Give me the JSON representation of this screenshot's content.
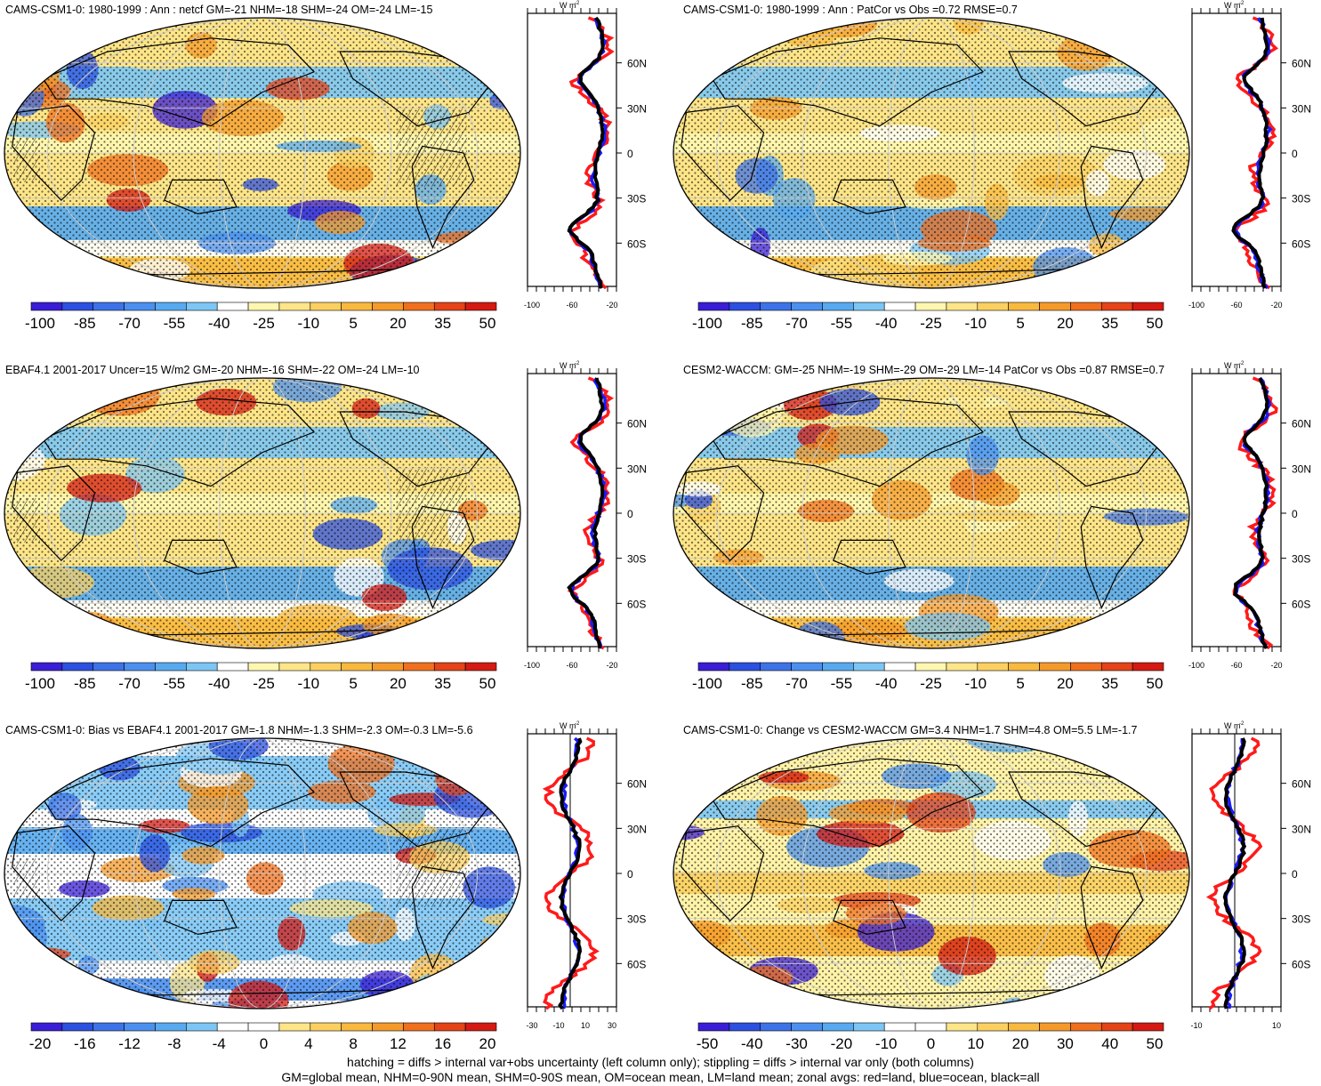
{
  "panels": [
    {
      "title": "CAMS-CSM1-0: 1980-1999 : Ann : netcf GM=-21 NHM=-18 SHM=-24 OM=-24 LM=-15",
      "colorbar": [
        "-100",
        "-85",
        "-70",
        "-55",
        "-40",
        "-25",
        "-10",
        "5",
        "20",
        "35",
        "50"
      ],
      "scheme": "full",
      "zonal_unit": "W m",
      "zonal_lat_labels": [
        "60N",
        "30N",
        "0",
        "30S",
        "60S"
      ],
      "zonal_x_labels": [
        "-100",
        "-60",
        "-20"
      ]
    },
    {
      "title": "CAMS-CSM1-0: 1980-1999 : Ann : PatCor vs Obs =0.72 RMSE=0.7",
      "colorbar": [
        "-100",
        "-85",
        "-70",
        "-55",
        "-40",
        "-25",
        "-10",
        "5",
        "20",
        "35",
        "50"
      ],
      "scheme": "full",
      "zonal_unit": "W m",
      "zonal_lat_labels": [
        "60N",
        "30N",
        "0",
        "30S",
        "60S"
      ],
      "zonal_x_labels": [
        "-100",
        "-60",
        "-20"
      ]
    },
    {
      "title": "EBAF4.1 2001-2017 Uncer=15 W/m2 GM=-20 NHM=-16 SHM=-22 OM=-24 LM=-10",
      "colorbar": [
        "-100",
        "-85",
        "-70",
        "-55",
        "-40",
        "-25",
        "-10",
        "5",
        "20",
        "35",
        "50"
      ],
      "scheme": "full",
      "zonal_unit": "W m",
      "zonal_lat_labels": [
        "60N",
        "30N",
        "0",
        "30S",
        "60S"
      ],
      "zonal_x_labels": [
        "-100",
        "-60",
        "-20"
      ]
    },
    {
      "title": "CESM2-WACCM: GM=-25 NHM=-19 SHM=-29 OM=-29 LM=-14 PatCor vs Obs =0.87 RMSE=0.7",
      "colorbar": [
        "-100",
        "-85",
        "-70",
        "-55",
        "-40",
        "-25",
        "-10",
        "5",
        "20",
        "35",
        "50"
      ],
      "scheme": "full",
      "zonal_unit": "W m",
      "zonal_lat_labels": [
        "60N",
        "30N",
        "0",
        "30S",
        "60S"
      ],
      "zonal_x_labels": [
        "-100",
        "-60",
        "-20"
      ]
    },
    {
      "title": "CAMS-CSM1-0: Bias vs EBAF4.1 2001-2017 GM=-1.8 NHM=-1.3 SHM=-2.3 OM=-0.3 LM=-5.6",
      "colorbar": [
        "-20",
        "-16",
        "-12",
        "-8",
        "-4",
        "0",
        "4",
        "8",
        "12",
        "16",
        "20"
      ],
      "scheme": "diff",
      "zonal_unit": "W m",
      "zonal_lat_labels": [
        "60N",
        "30N",
        "0",
        "30S",
        "60S"
      ],
      "zonal_x_labels": [
        "-30",
        "-10",
        "10",
        "30"
      ]
    },
    {
      "title": "CAMS-CSM1-0: Change vs CESM2-WACCM GM=3.4 NHM=1.7 SHM=4.8 OM=5.5 LM=-1.7",
      "colorbar": [
        "-50",
        "-40",
        "-30",
        "-20",
        "-10",
        "0",
        "10",
        "20",
        "30",
        "40",
        "50"
      ],
      "scheme": "change",
      "zonal_unit": "W m",
      "zonal_lat_labels": [
        "60N",
        "30N",
        "0",
        "30S",
        "60S"
      ],
      "zonal_x_labels": [
        "-10",
        "10"
      ]
    }
  ],
  "footer": {
    "line1": "hatching = diffs > internal var+obs uncertainty (left column only); stippling = diffs > internal var only (both columns)",
    "line2": "GM=global mean, NHM=0-90N mean, SHM=0-90S mean, OM=ocean mean, LM=land mean; zonal avgs: red=land, blue=ocean, black=all"
  },
  "colors": {
    "land_line": "#ff1a1a",
    "ocean_line": "#1a1aff",
    "all_line": "#000000",
    "map_blue": "#5fb4e8",
    "map_yellow": "#ffe27a",
    "map_orange": "#f7b440"
  }
}
